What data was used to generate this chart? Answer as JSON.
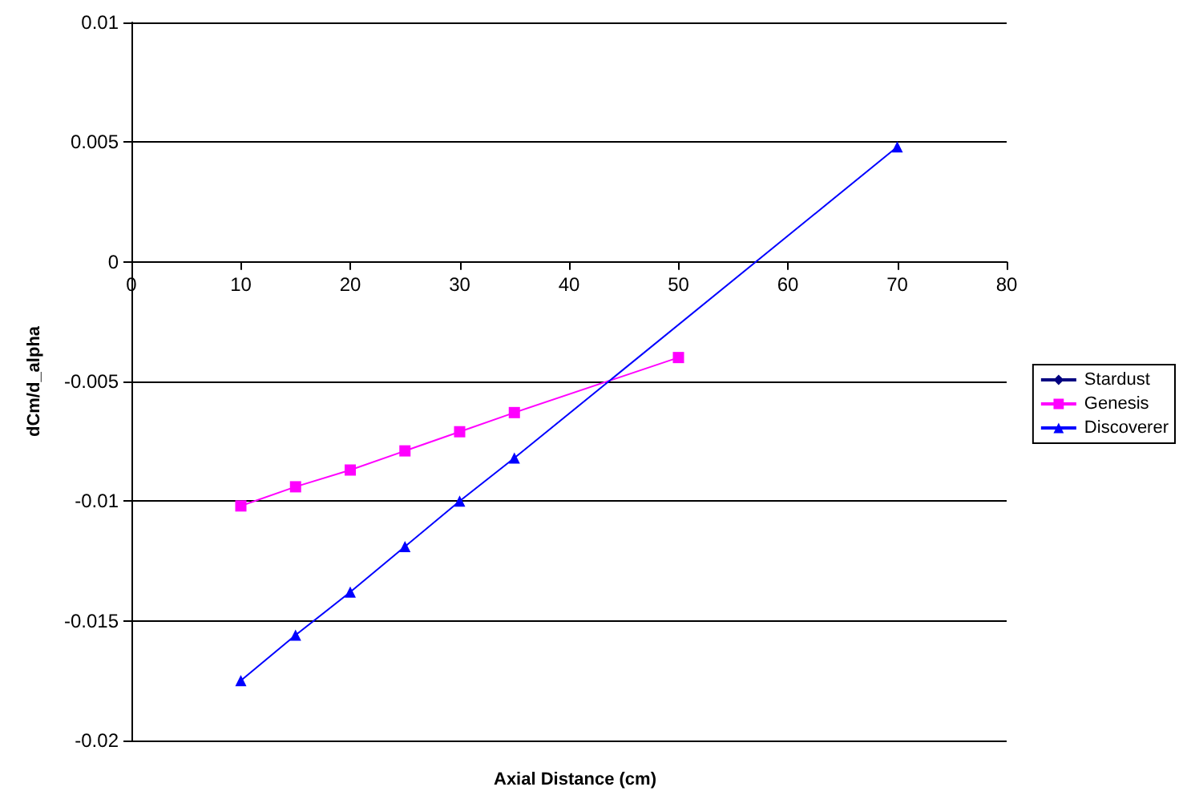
{
  "chart_data": {
    "type": "line",
    "xlabel": "Axial Distance (cm)",
    "ylabel": "dCm/d_alpha",
    "x": [
      10,
      15,
      20,
      25,
      30,
      35,
      50
    ],
    "series": [
      {
        "name": "Stardust",
        "color": "#000080",
        "marker": "diamond",
        "values": [
          null,
          null,
          null,
          null,
          null,
          null,
          null
        ]
      },
      {
        "name": "Genesis",
        "color": "#ff00ff",
        "marker": "square",
        "values": [
          -0.0102,
          -0.0094,
          -0.0087,
          -0.0079,
          -0.0071,
          -0.0063,
          -0.004
        ]
      },
      {
        "name": "Discoverer",
        "color": "#0000ff",
        "marker": "triangle",
        "x": [
          10,
          15,
          20,
          25,
          30,
          35,
          70
        ],
        "values": [
          -0.0175,
          -0.0156,
          -0.0138,
          -0.0119,
          -0.01,
          -0.0082,
          0.0048
        ]
      }
    ],
    "xlim": [
      0,
      80
    ],
    "xticks": [
      0,
      10,
      20,
      30,
      40,
      50,
      60,
      70,
      80
    ],
    "ylim": [
      -0.02,
      0.01
    ],
    "yticks": [
      -0.02,
      -0.015,
      -0.01,
      -0.005,
      0,
      0.005,
      0.01
    ],
    "grid": "y",
    "legend": "right",
    "line_style": "solid"
  }
}
